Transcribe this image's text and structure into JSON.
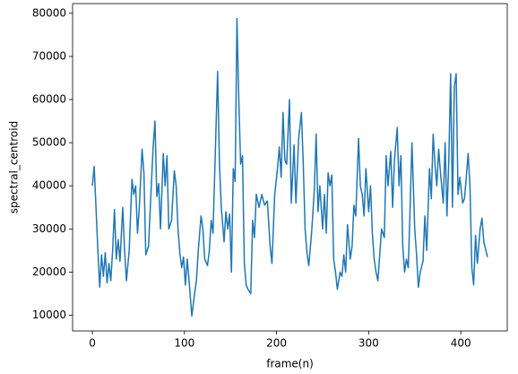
{
  "chart_data": {
    "type": "line",
    "x_label": "frame(n)",
    "y_label": "spectral_centroid",
    "color": "#1f77b4",
    "xlim": [
      -21.45,
      450.45
    ],
    "ylim": [
      6350,
      82250
    ],
    "xticks": [
      0,
      100,
      200,
      300,
      400
    ],
    "yticks": [
      10000,
      20000,
      30000,
      40000,
      50000,
      60000,
      70000,
      80000
    ],
    "x": [
      0,
      2,
      6,
      8,
      10,
      12,
      14,
      16,
      18,
      20,
      22,
      24,
      26,
      28,
      30,
      33,
      35,
      37,
      40,
      43,
      45,
      47,
      49,
      51,
      54,
      56,
      58,
      61,
      64,
      66,
      68,
      70,
      72,
      74,
      77,
      79,
      81,
      83,
      86,
      89,
      91,
      93,
      95,
      97,
      99,
      101,
      103,
      105,
      108,
      111,
      113,
      115,
      118,
      120,
      122,
      125,
      127,
      129,
      131,
      133,
      136,
      138,
      140,
      143,
      145,
      147,
      149,
      151,
      153,
      155,
      157,
      159,
      161,
      163,
      165,
      167,
      169,
      172,
      174,
      176,
      178,
      181,
      184,
      187,
      190,
      193,
      195,
      198,
      201,
      203,
      205,
      207,
      209,
      211,
      214,
      216,
      219,
      221,
      224,
      227,
      229,
      231,
      233,
      235,
      238,
      241,
      243,
      245,
      247,
      250,
      252,
      254,
      256,
      258,
      260,
      262,
      264,
      266,
      269,
      271,
      273,
      275,
      277,
      280,
      282,
      284,
      286,
      289,
      291,
      293,
      295,
      297,
      300,
      302,
      304,
      306,
      308,
      310,
      312,
      314,
      317,
      319,
      321,
      324,
      326,
      328,
      331,
      333,
      335,
      337,
      339,
      341,
      343,
      345,
      347,
      350,
      352,
      354,
      356,
      359,
      361,
      363,
      366,
      368,
      370,
      372,
      374,
      376,
      378,
      381,
      383,
      385,
      387,
      389,
      391,
      393,
      395,
      397,
      399,
      402,
      404,
      406,
      408,
      410,
      412,
      414,
      416,
      418,
      421,
      423,
      425,
      429
    ],
    "values": [
      40000,
      44500,
      25000,
      16500,
      24000,
      19000,
      24500,
      17500,
      22000,
      18000,
      25000,
      34500,
      23000,
      27500,
      22500,
      35000,
      25000,
      18000,
      25000,
      41500,
      38000,
      40000,
      29000,
      35000,
      48500,
      43000,
      24000,
      26000,
      40000,
      49000,
      55000,
      37500,
      40500,
      30000,
      47500,
      40000,
      47000,
      30000,
      32000,
      43500,
      40000,
      30000,
      24500,
      21000,
      23500,
      17000,
      23000,
      18000,
      9800,
      15000,
      18000,
      25000,
      33000,
      30000,
      23000,
      21500,
      25000,
      32000,
      29000,
      44000,
      66500,
      45000,
      35000,
      27000,
      34000,
      30000,
      33500,
      20000,
      44000,
      41000,
      78800,
      60000,
      45000,
      47000,
      22000,
      17000,
      16000,
      15000,
      32000,
      28000,
      38000,
      35000,
      38000,
      35500,
      36500,
      26000,
      22000,
      38000,
      44000,
      49000,
      42000,
      57000,
      46000,
      45000,
      60000,
      36000,
      49500,
      36000,
      51000,
      57000,
      45000,
      30000,
      24500,
      21500,
      29000,
      39000,
      52000,
      34000,
      40000,
      30000,
      38000,
      29000,
      43000,
      40000,
      42500,
      23000,
      20000,
      16000,
      20000,
      19000,
      24000,
      20000,
      31000,
      23000,
      26000,
      35500,
      33000,
      51000,
      40000,
      38000,
      33000,
      44000,
      34000,
      40000,
      29000,
      23000,
      20000,
      18000,
      24000,
      30000,
      28000,
      47000,
      40000,
      48000,
      35000,
      46000,
      53500,
      40000,
      47000,
      26000,
      20000,
      23000,
      21000,
      35000,
      50000,
      30000,
      24000,
      16500,
      20000,
      22500,
      33000,
      25000,
      44000,
      37000,
      52000,
      45000,
      40000,
      48500,
      43000,
      36000,
      50000,
      33000,
      46000,
      66000,
      35000,
      63000,
      66000,
      38000,
      42000,
      36000,
      37000,
      42000,
      47500,
      40000,
      21000,
      17000,
      28500,
      22000,
      30000,
      32500,
      27000,
      23500
    ]
  }
}
